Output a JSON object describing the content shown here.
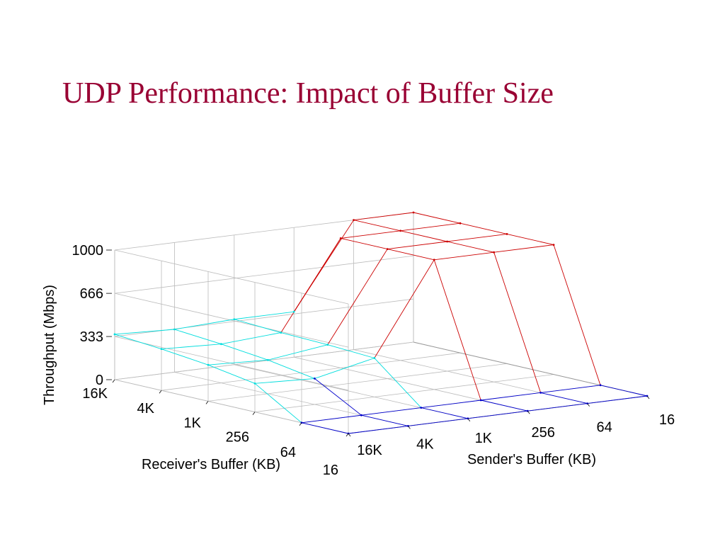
{
  "slide": {
    "title": "UDP Performance: Impact of Buffer Size"
  },
  "chart_data": {
    "type": "surface",
    "xlabel": "Receiver's Buffer (KB)",
    "ylabel": "Sender's Buffer (KB)",
    "zlabel": "Throughput (Mbps)",
    "receiver_buffer": [
      "16K",
      "4K",
      "1K",
      "256",
      "64",
      "16"
    ],
    "sender_buffer": [
      "16K",
      "4K",
      "1K",
      "256",
      "64",
      "16"
    ],
    "z_ticks": [
      "0",
      "333",
      "666",
      "1000"
    ],
    "zlim": [
      0,
      1000
    ],
    "throughput": [
      [
        350,
        330,
        350,
        350,
        1000,
        1000
      ],
      [
        320,
        300,
        330,
        1000,
        1000,
        1000
      ],
      [
        280,
        260,
        320,
        1000,
        1000,
        1000
      ],
      [
        220,
        200,
        300,
        1000,
        1000,
        1000
      ],
      [
        0,
        0,
        0,
        0,
        0,
        0
      ],
      [
        0,
        0,
        0,
        0,
        0,
        0
      ]
    ],
    "colors": {
      "low": "#0000cc",
      "mid": "#00dddd",
      "high": "#cc0000",
      "grid": "#bbbbbb"
    },
    "grid": true
  }
}
